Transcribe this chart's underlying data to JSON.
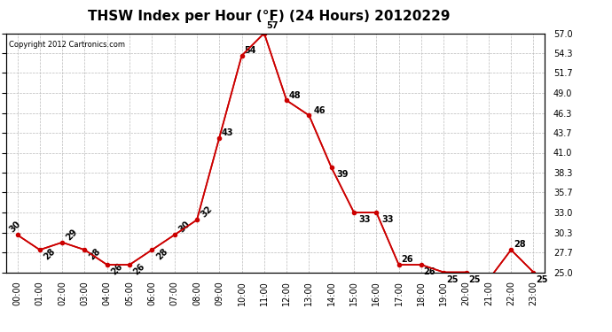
{
  "title": "THSW Index per Hour (°F) (24 Hours) 20120229",
  "copyright": "Copyright 2012 Cartronics.com",
  "hours": [
    0,
    1,
    2,
    3,
    4,
    5,
    6,
    7,
    8,
    9,
    10,
    11,
    12,
    13,
    14,
    15,
    16,
    17,
    18,
    19,
    20,
    21,
    22,
    23
  ],
  "hour_labels": [
    "00:00",
    "01:00",
    "02:00",
    "03:00",
    "04:00",
    "05:00",
    "06:00",
    "07:00",
    "08:00",
    "09:00",
    "10:00",
    "11:00",
    "12:00",
    "13:00",
    "14:00",
    "15:00",
    "16:00",
    "17:00",
    "18:00",
    "19:00",
    "20:00",
    "21:00",
    "22:00",
    "23:00"
  ],
  "values": [
    30,
    28,
    29,
    28,
    26,
    26,
    28,
    30,
    32,
    43,
    54,
    57,
    48,
    46,
    39,
    33,
    33,
    26,
    26,
    25,
    25,
    24,
    28,
    25
  ],
  "ylim": [
    25.0,
    57.0
  ],
  "yticks": [
    25.0,
    27.7,
    30.3,
    33.0,
    35.7,
    38.3,
    41.0,
    43.7,
    46.3,
    49.0,
    51.7,
    54.3,
    57.0
  ],
  "line_color": "#cc0000",
  "bg_color": "#ffffff",
  "grid_color": "#bbbbbb",
  "title_fontsize": 11,
  "label_fontsize": 7,
  "annotation_fontsize": 7,
  "copyright_fontsize": 6
}
